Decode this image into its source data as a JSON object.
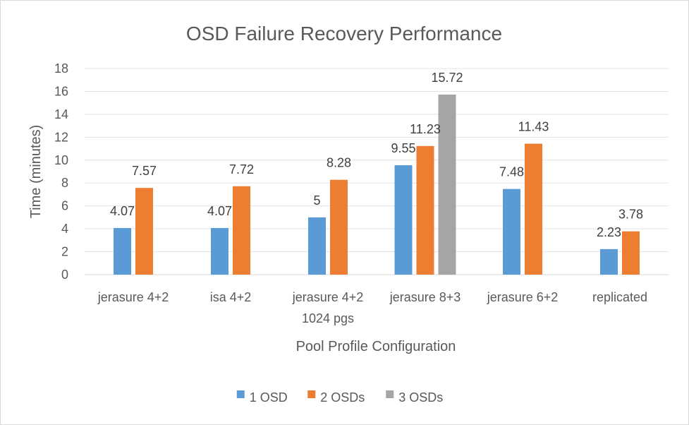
{
  "chart_data": {
    "type": "bar",
    "title": "OSD Failure Recovery Performance",
    "xlabel": "Pool Profile Configuration",
    "ylabel": "Time (minutes)",
    "categories": [
      [
        "jerasure 4+2"
      ],
      [
        "isa 4+2"
      ],
      [
        "jerasure 4+2",
        "1024 pgs"
      ],
      [
        "jerasure 8+3"
      ],
      [
        "jerasure 6+2"
      ],
      [
        "replicated"
      ]
    ],
    "series": [
      {
        "name": "1 OSD",
        "color": "#5b9bd5",
        "values": [
          4.07,
          4.07,
          5,
          9.55,
          7.48,
          2.23
        ]
      },
      {
        "name": "2 OSDs",
        "color": "#ed7d31",
        "values": [
          7.57,
          7.72,
          8.28,
          11.23,
          11.43,
          3.78
        ]
      },
      {
        "name": "3 OSDs",
        "color": "#a5a5a5",
        "values": [
          null,
          null,
          null,
          15.72,
          null,
          null
        ]
      }
    ],
    "ylim": [
      0,
      18
    ],
    "yticks": [
      0,
      2,
      4,
      6,
      8,
      10,
      12,
      14,
      16,
      18
    ],
    "grid": true,
    "legend": "bottom"
  }
}
